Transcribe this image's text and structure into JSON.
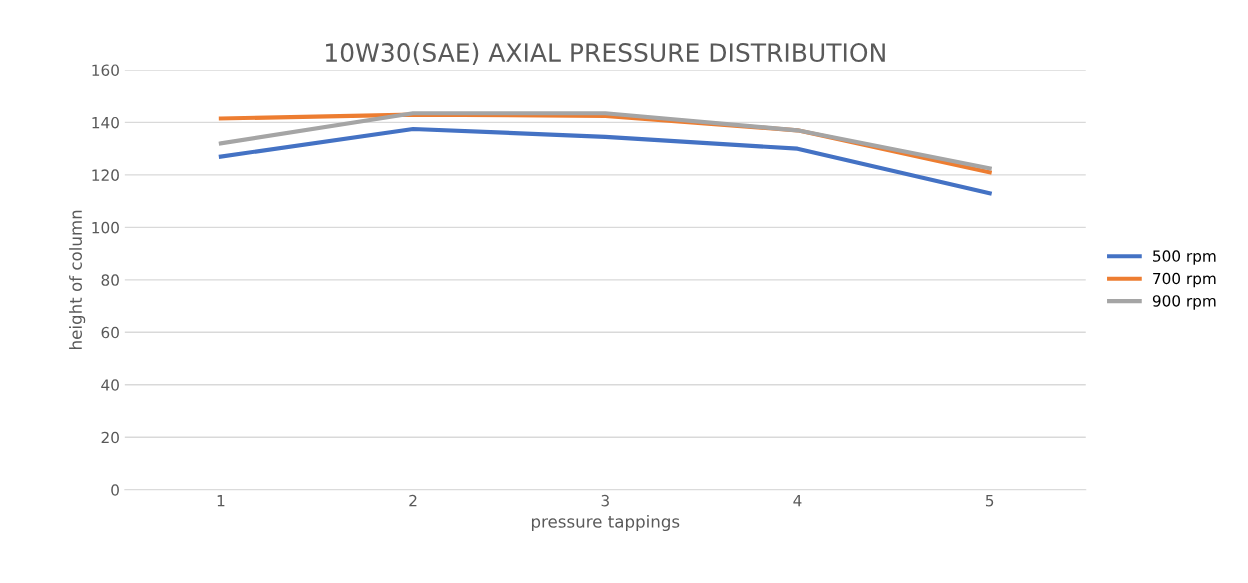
{
  "chart_data": {
    "type": "line",
    "title": "10W30(SAE) AXIAL PRESSURE DISTRIBUTION",
    "xlabel": "pressure tappings",
    "ylabel": "height of column",
    "categories": [
      "1",
      "2",
      "3",
      "4",
      "5"
    ],
    "series": [
      {
        "name": "500 rpm",
        "color": "#4472c4",
        "values": [
          127,
          137.5,
          134.5,
          130,
          113
        ]
      },
      {
        "name": "700 rpm",
        "color": "#ed7d31",
        "values": [
          141.5,
          143,
          142.5,
          137,
          121
        ]
      },
      {
        "name": "900 rpm",
        "color": "#a5a5a5",
        "values": [
          132,
          143.5,
          143.5,
          137,
          122.5
        ]
      }
    ],
    "ylim": [
      0,
      160
    ],
    "yticks": [
      0,
      20,
      40,
      60,
      80,
      100,
      120,
      140,
      160
    ],
    "grid": "y",
    "legend": "right"
  }
}
